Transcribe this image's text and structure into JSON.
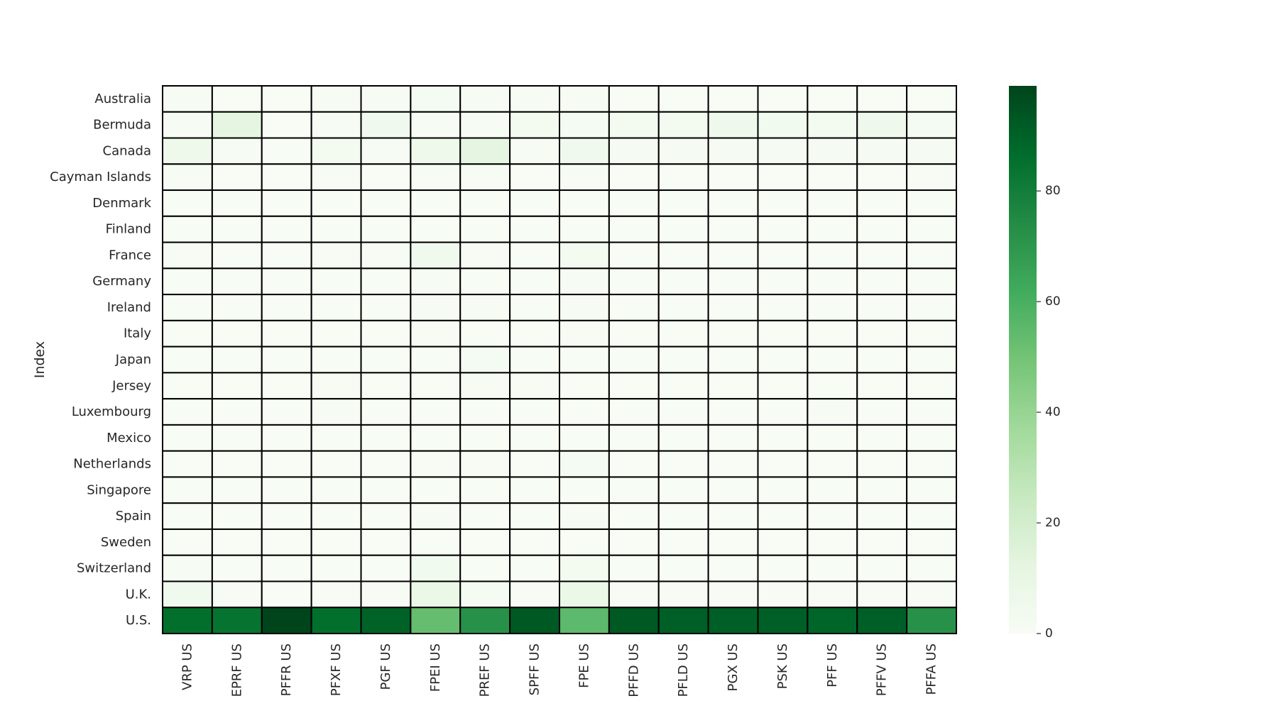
{
  "chart_data": {
    "type": "heatmap",
    "title": "",
    "xlabel": "",
    "ylabel": "Index",
    "x_categories": [
      "VRP US",
      "EPRF US",
      "PFFR US",
      "PFXF US",
      "PGF US",
      "FPEI US",
      "PREF US",
      "SPFF US",
      "FPE US",
      "PFFD US",
      "PFLD US",
      "PGX US",
      "PSK US",
      "PFF US",
      "PFFV US",
      "PFFA US"
    ],
    "y_categories": [
      "Australia",
      "Bermuda",
      "Canada",
      "Cayman Islands",
      "Denmark",
      "Finland",
      "France",
      "Germany",
      "Ireland",
      "Italy",
      "Japan",
      "Jersey",
      "Luxembourg",
      "Mexico",
      "Netherlands",
      "Singapore",
      "Spain",
      "Sweden",
      "Switzerland",
      "U.K.",
      "U.S."
    ],
    "values": [
      [
        0.5,
        0.3,
        0.3,
        0.5,
        0.5,
        2.0,
        0.5,
        0.5,
        1.0,
        0.3,
        0.3,
        0.3,
        0.3,
        0.3,
        0.3,
        0.3
      ],
      [
        0.5,
        12.0,
        0.3,
        0.5,
        5.0,
        0.5,
        0.5,
        3.0,
        2.0,
        3.0,
        3.0,
        6.0,
        4.0,
        3.0,
        6.0,
        2.0
      ],
      [
        6.0,
        0.5,
        0.3,
        3.0,
        0.5,
        6.0,
        12.0,
        0.5,
        5.0,
        1.5,
        1.5,
        1.5,
        1.5,
        1.5,
        1.5,
        1.5
      ],
      [
        0.5,
        0.3,
        0.3,
        0.5,
        0.3,
        0.5,
        0.5,
        0.3,
        0.5,
        0.3,
        0.3,
        0.3,
        0.3,
        0.3,
        0.3,
        1.0
      ],
      [
        0.3,
        0.3,
        0.3,
        0.3,
        0.3,
        0.3,
        0.3,
        0.3,
        0.3,
        0.3,
        0.3,
        0.3,
        0.3,
        0.3,
        0.3,
        0.3
      ],
      [
        0.3,
        0.3,
        0.3,
        0.3,
        0.3,
        0.3,
        0.3,
        0.3,
        0.3,
        0.3,
        0.3,
        0.3,
        0.3,
        0.3,
        0.3,
        0.3
      ],
      [
        0.5,
        0.3,
        0.3,
        0.5,
        0.5,
        5.0,
        0.5,
        0.3,
        3.0,
        0.3,
        0.3,
        0.3,
        0.3,
        0.3,
        0.3,
        0.3
      ],
      [
        0.3,
        0.3,
        0.3,
        0.3,
        0.3,
        1.0,
        0.3,
        0.3,
        1.0,
        0.3,
        0.3,
        0.3,
        0.3,
        0.3,
        0.3,
        0.3
      ],
      [
        0.3,
        0.3,
        0.3,
        0.3,
        0.3,
        0.5,
        1.0,
        0.3,
        0.5,
        0.3,
        0.3,
        0.3,
        0.3,
        0.3,
        0.3,
        0.3
      ],
      [
        0.3,
        0.3,
        0.3,
        0.3,
        0.3,
        1.0,
        0.3,
        0.3,
        1.0,
        0.3,
        0.3,
        0.3,
        0.3,
        0.3,
        0.3,
        0.3
      ],
      [
        0.3,
        0.3,
        0.3,
        0.3,
        0.3,
        0.3,
        2.0,
        0.3,
        0.3,
        0.3,
        0.3,
        0.3,
        0.3,
        0.3,
        0.3,
        0.3
      ],
      [
        0.3,
        0.3,
        0.3,
        1.0,
        0.3,
        0.3,
        0.5,
        1.0,
        0.3,
        0.3,
        0.3,
        0.3,
        0.3,
        0.3,
        0.3,
        0.3
      ],
      [
        0.3,
        0.3,
        0.3,
        1.0,
        0.3,
        0.3,
        0.3,
        0.3,
        0.3,
        0.3,
        0.3,
        0.3,
        0.3,
        0.5,
        0.3,
        0.3
      ],
      [
        0.3,
        0.3,
        0.3,
        0.3,
        0.3,
        0.3,
        0.3,
        0.3,
        0.3,
        0.3,
        0.3,
        0.3,
        0.3,
        0.3,
        0.3,
        0.3
      ],
      [
        0.3,
        0.3,
        0.3,
        0.3,
        0.3,
        1.0,
        1.0,
        0.3,
        2.0,
        0.3,
        0.3,
        0.3,
        0.3,
        0.3,
        0.3,
        0.3
      ],
      [
        0.3,
        0.3,
        0.3,
        0.3,
        0.3,
        0.3,
        0.3,
        0.3,
        0.3,
        0.3,
        0.3,
        0.3,
        0.3,
        0.3,
        0.3,
        0.3
      ],
      [
        0.3,
        0.3,
        0.3,
        0.3,
        0.3,
        1.0,
        0.3,
        0.3,
        1.0,
        0.3,
        0.3,
        0.3,
        0.3,
        0.3,
        0.3,
        0.3
      ],
      [
        0.3,
        0.3,
        0.3,
        0.3,
        0.3,
        0.3,
        0.3,
        0.3,
        0.3,
        0.3,
        0.3,
        0.3,
        0.3,
        0.3,
        0.3,
        0.3
      ],
      [
        0.5,
        0.3,
        0.3,
        0.3,
        0.3,
        4.0,
        0.3,
        0.3,
        3.0,
        0.3,
        0.3,
        0.3,
        0.3,
        0.3,
        0.3,
        0.3
      ],
      [
        5.0,
        0.5,
        0.3,
        0.5,
        0.5,
        8.0,
        2.0,
        0.5,
        8.0,
        0.5,
        0.5,
        0.5,
        0.5,
        0.5,
        0.5,
        0.5
      ],
      [
        86.0,
        84.0,
        99.0,
        86.0,
        90.0,
        53.0,
        72.0,
        93.0,
        55.0,
        93.0,
        91.0,
        91.0,
        91.0,
        89.0,
        91.0,
        72.0
      ]
    ],
    "vmin": 0,
    "vmax": 99,
    "colormap": "Greens",
    "colorbar": {
      "ticks": [
        0,
        20,
        40,
        60,
        80
      ],
      "tick_labels": [
        "0",
        "20",
        "40",
        "60",
        "80"
      ]
    },
    "cell_border_color": "#000000",
    "grid": false
  }
}
